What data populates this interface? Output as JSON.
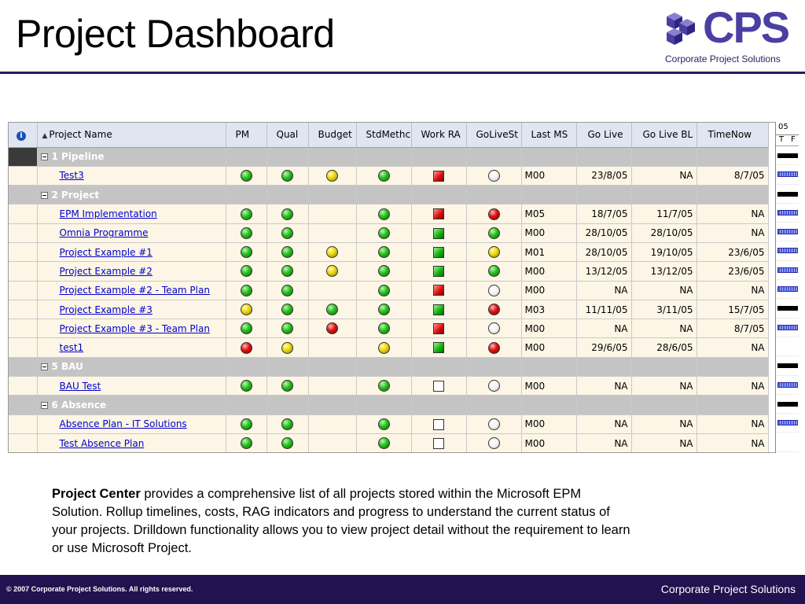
{
  "slide": {
    "title": "Project Dashboard",
    "logo_text": "CPS",
    "logo_tagline": "Corporate Project Solutions"
  },
  "grid": {
    "headers": {
      "info": "i",
      "project_name": "Project Name",
      "pm": "PM",
      "qual": "Qual",
      "budget": "Budget",
      "stdmethod": "StdMethc",
      "workra": "Work RA",
      "golivest": "GoLiveSt",
      "lastms": "Last MS",
      "golive": "Go Live",
      "golivebl": "Go Live BL",
      "timenow": "TimeNow"
    },
    "rows": [
      {
        "type": "summary",
        "name": "1 Pipeline"
      },
      {
        "type": "task",
        "name": "Test3",
        "pm": "green",
        "qual": "green",
        "budget": "yellow",
        "stdmethod": "green",
        "workra": "red",
        "golivest": "white",
        "lastms": "M00",
        "golive": "23/8/05",
        "golivebl": "NA",
        "timenow": "8/7/05"
      },
      {
        "type": "summary",
        "name": "2 Project"
      },
      {
        "type": "task",
        "name": "EPM Implementation",
        "pm": "green",
        "qual": "green",
        "budget": "",
        "stdmethod": "green",
        "workra": "red",
        "golivest": "red",
        "lastms": "M05",
        "golive": "18/7/05",
        "golivebl": "11/7/05",
        "timenow": "NA"
      },
      {
        "type": "task",
        "name": "Omnia Programme",
        "pm": "green",
        "qual": "green",
        "budget": "",
        "stdmethod": "green",
        "workra": "green",
        "golivest": "green",
        "lastms": "M00",
        "golive": "28/10/05",
        "golivebl": "28/10/05",
        "timenow": "NA"
      },
      {
        "type": "task",
        "name": "Project Example #1",
        "pm": "green",
        "qual": "green",
        "budget": "yellow",
        "stdmethod": "green",
        "workra": "green",
        "golivest": "yellow",
        "lastms": "M01",
        "golive": "28/10/05",
        "golivebl": "19/10/05",
        "timenow": "23/6/05"
      },
      {
        "type": "task",
        "name": "Project Example #2",
        "pm": "green",
        "qual": "green",
        "budget": "yellow",
        "stdmethod": "green",
        "workra": "green",
        "golivest": "green",
        "lastms": "M00",
        "golive": "13/12/05",
        "golivebl": "13/12/05",
        "timenow": "23/6/05"
      },
      {
        "type": "task",
        "name": "Project Example #2 - Team Plan",
        "pm": "green",
        "qual": "green",
        "budget": "",
        "stdmethod": "green",
        "workra": "red",
        "golivest": "white",
        "lastms": "M00",
        "golive": "NA",
        "golivebl": "NA",
        "timenow": "NA"
      },
      {
        "type": "task",
        "name": "Project Example #3",
        "pm": "yellow",
        "qual": "green",
        "budget": "green",
        "stdmethod": "green",
        "workra": "green",
        "golivest": "red",
        "lastms": "M03",
        "golive": "11/11/05",
        "golivebl": "3/11/05",
        "timenow": "15/7/05"
      },
      {
        "type": "task",
        "name": "Project Example #3 - Team Plan",
        "pm": "green",
        "qual": "green",
        "budget": "red",
        "stdmethod": "green",
        "workra": "red",
        "golivest": "white",
        "lastms": "M00",
        "golive": "NA",
        "golivebl": "NA",
        "timenow": "8/7/05"
      },
      {
        "type": "task",
        "name": "test1",
        "pm": "red",
        "qual": "yellow",
        "budget": "",
        "stdmethod": "yellow",
        "workra": "green",
        "golivest": "red",
        "lastms": "M00",
        "golive": "29/6/05",
        "golivebl": "28/6/05",
        "timenow": "NA"
      },
      {
        "type": "summary",
        "name": "5 BAU"
      },
      {
        "type": "task",
        "name": "BAU Test",
        "pm": "green",
        "qual": "green",
        "budget": "",
        "stdmethod": "green",
        "workra": "white",
        "golivest": "white",
        "lastms": "M00",
        "golive": "NA",
        "golivebl": "NA",
        "timenow": "NA"
      },
      {
        "type": "summary",
        "name": "6 Absence"
      },
      {
        "type": "task",
        "name": "Absence Plan - IT Solutions",
        "pm": "green",
        "qual": "green",
        "budget": "",
        "stdmethod": "green",
        "workra": "white",
        "golivest": "white",
        "lastms": "M00",
        "golive": "NA",
        "golivebl": "NA",
        "timenow": "NA"
      },
      {
        "type": "task",
        "name": "Test Absence Plan",
        "pm": "green",
        "qual": "green",
        "budget": "",
        "stdmethod": "green",
        "workra": "white",
        "golivest": "white",
        "lastms": "M00",
        "golive": "NA",
        "golivebl": "NA",
        "timenow": "NA"
      }
    ]
  },
  "gantt": {
    "year": "05",
    "days": [
      "T",
      "F"
    ],
    "bars": [
      "black",
      "blue",
      "black",
      "blue",
      "blue",
      "blue",
      "blue",
      "blue",
      "black",
      "blue",
      "",
      "black",
      "blue",
      "black",
      "blue",
      ""
    ]
  },
  "colors": {
    "green": "#25c01c",
    "yellow": "#ecd80f",
    "red": "#e01010",
    "white": "#f2f2f2",
    "brand": "#4b3fa3",
    "footer_bg": "#22124f"
  },
  "description": {
    "lead": "Project Center",
    "body": " provides a comprehensive list of all projects stored within the Microsoft EPM Solution.  Rollup timelines, costs, RAG indicators and progress to understand the current status of your projects.  Drilldown functionality allows you to view project detail without the requirement to learn or use Microsoft Project."
  },
  "footer": {
    "copyright": "© 2007 Corporate Project Solutions. All rights reserved.",
    "company": "Corporate Project Solutions"
  }
}
